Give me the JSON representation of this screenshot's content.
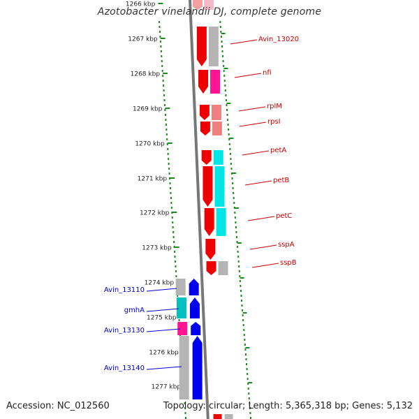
{
  "title": "Azotobacter vinelandii DJ, complete genome",
  "accession_text": "Accession: NC_012560",
  "summary_text": "Topology: circular; Length: 5,365,318 bp; Genes: 5,132",
  "ruler": {
    "tick_unit": "kbp",
    "ticks": [
      "1266 kbp",
      "1267 kbp",
      "1268 kbp",
      "1269 kbp",
      "1270 kbp",
      "1271 kbp",
      "1272 kbp",
      "1273 kbp",
      "1274 kbp",
      "1275 kbp",
      "1276 kbp",
      "1277 kbp"
    ]
  },
  "colors": {
    "forward_label": "#cc0000",
    "reverse_label": "#0000cc",
    "backbone": "#777777",
    "ruler_dots": "#1a8a1a",
    "cds_forward": "#ee0000",
    "cds_reverse": "#0000ee",
    "trna": "#ff1493",
    "cog_gray": "#b4b4b4",
    "cog_cyan": "#00e5e5",
    "cog_teal": "#00c0c0",
    "cog_pink": "#ff1493",
    "cog_salmon": "#f08080"
  },
  "forward_genes": [
    {
      "label": "Avin_13020"
    },
    {
      "label": "nfi"
    },
    {
      "label": "rplM"
    },
    {
      "label": "rpsI"
    },
    {
      "label": "petA"
    },
    {
      "label": "petB"
    },
    {
      "label": "petC"
    },
    {
      "label": "sspA"
    },
    {
      "label": "sspB"
    }
  ],
  "reverse_genes": [
    {
      "label": "Avin_13110"
    },
    {
      "label": "gmhA"
    },
    {
      "label": "Avin_13130"
    },
    {
      "label": "Avin_13140"
    }
  ]
}
